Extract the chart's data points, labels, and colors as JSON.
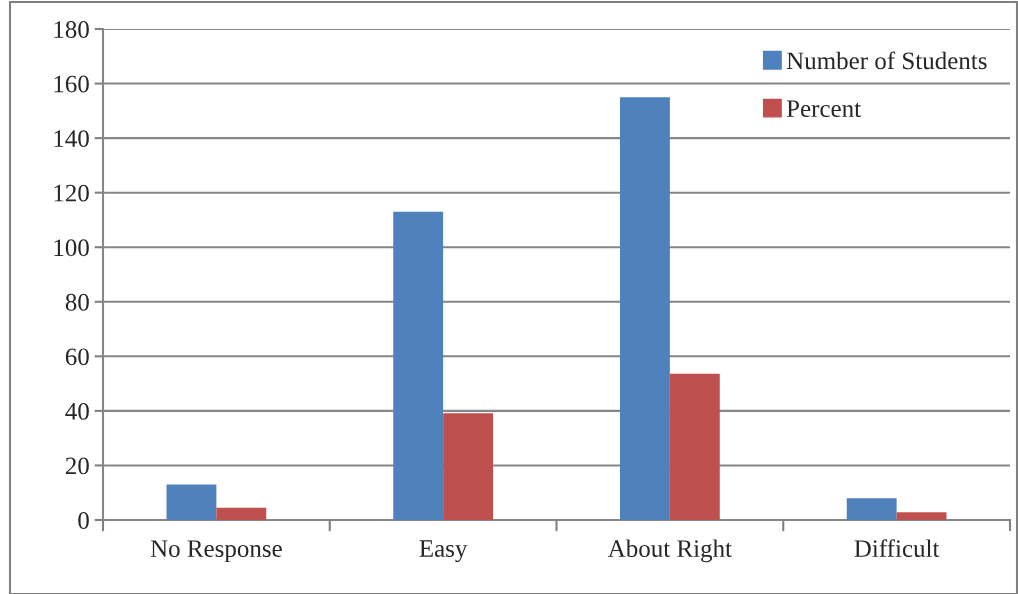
{
  "chart_data": {
    "type": "bar",
    "categories": [
      "No Response",
      "Easy",
      "About Right",
      "Difficult"
    ],
    "series": [
      {
        "name": "Number of Students",
        "color": "#4f81bd",
        "values": [
          13,
          113,
          155,
          8
        ]
      },
      {
        "name": "Percent",
        "color": "#c0504d",
        "values": [
          4.5,
          39.1,
          53.6,
          2.8
        ]
      }
    ],
    "ylim": [
      0,
      180
    ],
    "yticks": [
      0,
      20,
      40,
      60,
      80,
      100,
      120,
      140,
      160,
      180
    ],
    "grid": "y",
    "legend": "top right"
  }
}
